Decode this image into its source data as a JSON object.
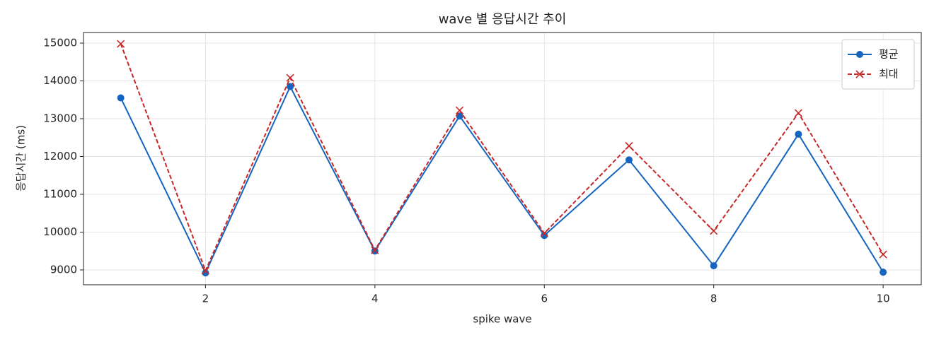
{
  "chart_data": {
    "type": "line",
    "title": "wave 별 응답시간 추이",
    "xlabel": "spike wave",
    "ylabel": "응답시간 (ms)",
    "x": [
      1,
      2,
      3,
      4,
      5,
      6,
      7,
      8,
      9,
      10
    ],
    "series": [
      {
        "name": "평균",
        "color": "#1565c0",
        "linestyle": "solid",
        "marker": "circle",
        "values": [
          13550,
          8920,
          13850,
          9500,
          13070,
          9910,
          11910,
          9110,
          12590,
          8940
        ]
      },
      {
        "name": "최대",
        "color": "#c62828",
        "linestyle": "dashed",
        "marker": "x",
        "values": [
          14980,
          8980,
          14080,
          9520,
          13220,
          9970,
          12280,
          10030,
          13150,
          9410
        ]
      }
    ],
    "xlim": [
      0.56,
      10.45
    ],
    "ylim": [
      8607,
      15280
    ],
    "xticks": [
      2,
      4,
      6,
      8,
      10
    ],
    "yticks": [
      9000,
      10000,
      11000,
      12000,
      13000,
      14000,
      15000
    ],
    "grid": true,
    "legend": "upper right"
  }
}
